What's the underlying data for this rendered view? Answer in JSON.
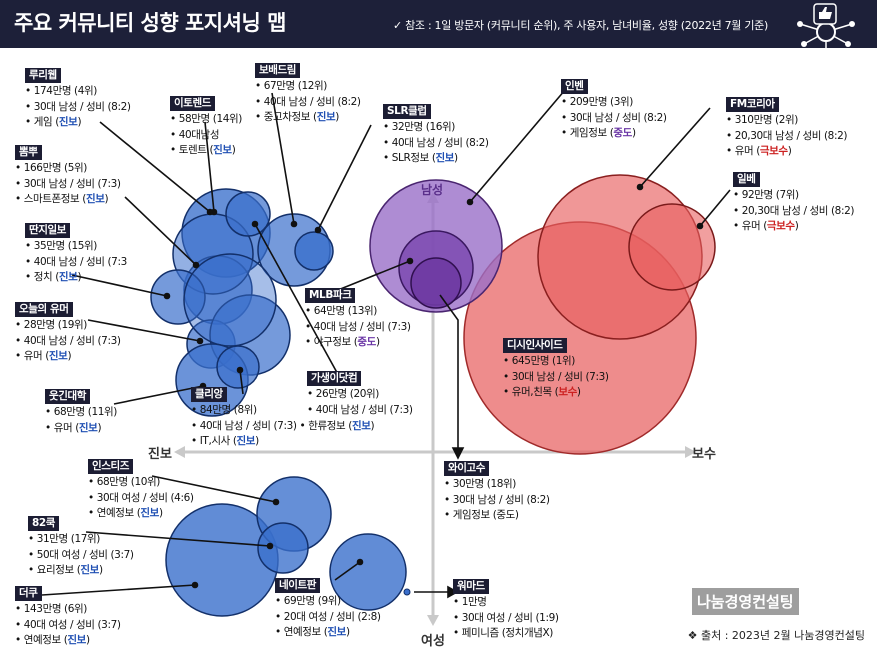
{
  "title": "주요 커뮤니티 성향 포지셔닝 맵",
  "note": "✓ 참조 : 1일 방문자 (커뮤니티 순위), 주 사용자, 남녀비율, 성향 (2022년 7월 기준)",
  "axes": {
    "left": "진보",
    "right": "보수",
    "top": "남성",
    "bottom": "여성"
  },
  "source": "❖ 출처 : 2023년 2월 나눔경영컨설팅",
  "watermark": "나눔경영컨설팅",
  "colors": {
    "header": "#1d2039",
    "progressive": "#3a6fcc",
    "conservative": "#e04848",
    "neutral": "#7a4aa8"
  },
  "communities": [
    {
      "name": "루리웹",
      "visitors": "174만명 (4위)",
      "users": "30대 남성 / 성비 (8:2)",
      "topic": "게임",
      "lean": "진보"
    },
    {
      "name": "뽐뿌",
      "visitors": "166만명 (5위)",
      "users": "30대 남성 / 성비 (7:3)",
      "topic": "스마트폰정보",
      "lean": "진보"
    },
    {
      "name": "딴지일보",
      "visitors": "35만명 (15위)",
      "users": "40대 남성 / 성비 (7:3",
      "topic": "정치",
      "lean": "진보"
    },
    {
      "name": "오늘의 유머",
      "visitors": "28만명 (19위)",
      "users": "40대 남성 / 성비 (7:3)",
      "topic": "유머",
      "lean": "진보"
    },
    {
      "name": "웃긴대학",
      "visitors": "68만명 (11위)",
      "topic": "유머",
      "lean": "진보"
    },
    {
      "name": "이토렌드",
      "visitors": "58만명 (14위)",
      "users": "40대남성",
      "topic": "토렌트",
      "lean": "진보"
    },
    {
      "name": "보배드림",
      "visitors": "67만명 (12위)",
      "users": "40대 남성 / 성비 (8:2)",
      "topic": "중고차정보",
      "lean": "진보"
    },
    {
      "name": "SLR클럽",
      "visitors": "32만명 (16위)",
      "users": "40대 남성 / 성비 (8:2)",
      "topic": "SLR정보",
      "lean": "진보"
    },
    {
      "name": "MLB파크",
      "visitors": "64만명 (13위)",
      "users": "40대 남성 / 성비 (7:3)",
      "topic": "야구정보",
      "lean": "중도"
    },
    {
      "name": "가생이닷컴",
      "visitors": "26만명 (20위)",
      "users": "40대 남성 / 성비 (7:3)",
      "topic": "한류정보",
      "lean": "진보"
    },
    {
      "name": "클리앙",
      "visitors": "84만명 (8위)",
      "users": "40대 남성 / 성비 (7:3)",
      "topic": "IT,시사",
      "lean": "진보"
    },
    {
      "name": "인벤",
      "visitors": "209만명 (3위)",
      "users": "30대 남성 / 성비 (8:2)",
      "topic": "게임정보",
      "lean": "중도"
    },
    {
      "name": "FM코리아",
      "visitors": "310만명 (2위)",
      "users": "20,30대 남성 / 성비 (8:2)",
      "topic": "유머",
      "lean": "극보수"
    },
    {
      "name": "일베",
      "visitors": "92만명 (7위)",
      "users": "20,30대 남성 / 성비 (8:2)",
      "topic": "유머",
      "lean": "극보수"
    },
    {
      "name": "디시인사이드",
      "visitors": "645만명 (1위)",
      "users": "30대 남성 / 성비 (7:3)",
      "topic": "유머,친목",
      "lean": "보수"
    },
    {
      "name": "와이고수",
      "visitors": "30만명 (18위)",
      "users": "30대 남성 / 성비 (8:2)",
      "topic": "게임정보 (중도)"
    },
    {
      "name": "인스티즈",
      "visitors": "68만명 (10위)",
      "users": "30대 여성 / 성비 (4:6)",
      "topic": "연예정보",
      "lean": "진보"
    },
    {
      "name": "82쿡",
      "visitors": "31만명 (17위)",
      "users": "50대 여성 / 성비 (3:7)",
      "topic": "요리정보",
      "lean": "진보"
    },
    {
      "name": "더쿠",
      "visitors": "143만명 (6위)",
      "users": "40대 여성 / 성비 (3:7)",
      "topic": "연예정보",
      "lean": "진보"
    },
    {
      "name": "네이트판",
      "visitors": "69만명 (9위)",
      "users": "20대 여성 / 성비 (2:8)",
      "topic": "연예정보",
      "lean": "진보"
    },
    {
      "name": "워마드",
      "visitors": "1만명",
      "users": "30대 여성 / 성비 (1:9)",
      "topic": "페미니즘",
      "lean": "정치개념X"
    }
  ]
}
